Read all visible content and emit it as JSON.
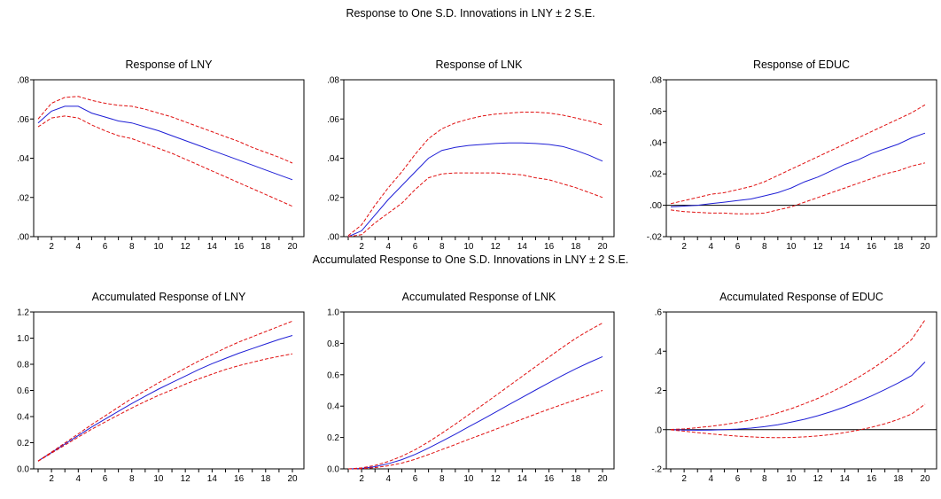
{
  "sections": [
    {
      "title": "Response to One S.D. Innovations in LNY ± 2 S.E.",
      "charts": [
        {
          "type": "line",
          "title": "Response of LNY",
          "x": [
            1,
            2,
            3,
            4,
            5,
            6,
            7,
            8,
            9,
            10,
            11,
            12,
            13,
            14,
            15,
            16,
            17,
            18,
            19,
            20
          ],
          "ylim": [
            0,
            0.08
          ],
          "yticks": [
            0,
            0.02,
            0.04,
            0.06,
            0.08
          ],
          "ytick_labels": [
            ".00",
            ".02",
            ".04",
            ".06",
            ".08"
          ],
          "zero_line": false,
          "series": [
            {
              "role": "response",
              "values": [
                0.058,
                0.064,
                0.0665,
                0.0665,
                0.063,
                0.061,
                0.059,
                0.058,
                0.056,
                0.054,
                0.0515,
                0.049,
                0.0465,
                0.044,
                0.0415,
                0.039,
                0.0365,
                0.034,
                0.0315,
                0.029
              ]
            },
            {
              "role": "upper",
              "values": [
                0.06,
                0.068,
                0.071,
                0.0715,
                0.0695,
                0.068,
                0.067,
                0.0665,
                0.065,
                0.063,
                0.061,
                0.0585,
                0.056,
                0.0535,
                0.051,
                0.0485,
                0.0455,
                0.043,
                0.0405,
                0.0375
              ]
            },
            {
              "role": "lower",
              "values": [
                0.056,
                0.0605,
                0.0615,
                0.0605,
                0.057,
                0.054,
                0.0515,
                0.05,
                0.0475,
                0.045,
                0.0425,
                0.0395,
                0.0365,
                0.0335,
                0.0305,
                0.0275,
                0.0245,
                0.0215,
                0.0185,
                0.0155
              ]
            }
          ]
        },
        {
          "type": "line",
          "title": "Response of LNK",
          "x": [
            1,
            2,
            3,
            4,
            5,
            6,
            7,
            8,
            9,
            10,
            11,
            12,
            13,
            14,
            15,
            16,
            17,
            18,
            19,
            20
          ],
          "ylim": [
            0,
            0.08
          ],
          "yticks": [
            0,
            0.02,
            0.04,
            0.06,
            0.08
          ],
          "ytick_labels": [
            ".00",
            ".02",
            ".04",
            ".06",
            ".08"
          ],
          "zero_line": false,
          "series": [
            {
              "role": "response",
              "values": [
                0.0,
                0.003,
                0.011,
                0.019,
                0.026,
                0.033,
                0.04,
                0.044,
                0.0455,
                0.0465,
                0.047,
                0.0475,
                0.0478,
                0.0478,
                0.0475,
                0.047,
                0.046,
                0.044,
                0.0415,
                0.0385
              ]
            },
            {
              "role": "upper",
              "values": [
                0.0005,
                0.006,
                0.016,
                0.025,
                0.033,
                0.042,
                0.05,
                0.055,
                0.058,
                0.06,
                0.0615,
                0.0625,
                0.063,
                0.0635,
                0.0635,
                0.063,
                0.062,
                0.0605,
                0.059,
                0.057
              ]
            },
            {
              "role": "lower",
              "values": [
                0.0,
                0.001,
                0.007,
                0.012,
                0.017,
                0.024,
                0.03,
                0.032,
                0.0325,
                0.0325,
                0.0325,
                0.0325,
                0.032,
                0.0315,
                0.03,
                0.029,
                0.027,
                0.025,
                0.0225,
                0.02
              ]
            }
          ]
        },
        {
          "type": "line",
          "title": "Response of EDUC",
          "x": [
            1,
            2,
            3,
            4,
            5,
            6,
            7,
            8,
            9,
            10,
            11,
            12,
            13,
            14,
            15,
            16,
            17,
            18,
            19,
            20
          ],
          "ylim": [
            -0.02,
            0.08
          ],
          "yticks": [
            -0.02,
            0,
            0.02,
            0.04,
            0.06,
            0.08
          ],
          "ytick_labels": [
            "-.02",
            ".00",
            ".02",
            ".04",
            ".06",
            ".08"
          ],
          "zero_line": true,
          "series": [
            {
              "role": "response",
              "values": [
                -0.001,
                -0.0005,
                0.0,
                0.001,
                0.002,
                0.003,
                0.004,
                0.006,
                0.008,
                0.011,
                0.015,
                0.018,
                0.022,
                0.026,
                0.029,
                0.033,
                0.036,
                0.039,
                0.043,
                0.046
              ]
            },
            {
              "role": "upper",
              "values": [
                0.001,
                0.003,
                0.005,
                0.007,
                0.008,
                0.01,
                0.012,
                0.015,
                0.019,
                0.023,
                0.027,
                0.031,
                0.035,
                0.039,
                0.043,
                0.047,
                0.051,
                0.055,
                0.059,
                0.064
              ]
            },
            {
              "role": "lower",
              "values": [
                -0.003,
                -0.004,
                -0.0045,
                -0.005,
                -0.005,
                -0.0055,
                -0.0055,
                -0.005,
                -0.003,
                -0.001,
                0.002,
                0.005,
                0.008,
                0.011,
                0.014,
                0.017,
                0.02,
                0.022,
                0.025,
                0.027
              ]
            }
          ]
        }
      ]
    },
    {
      "title": "Accumulated Response to One S.D. Innovations in LNY ± 2 S.E.",
      "charts": [
        {
          "type": "line",
          "title": "Accumulated Response of LNY",
          "x": [
            1,
            2,
            3,
            4,
            5,
            6,
            7,
            8,
            9,
            10,
            11,
            12,
            13,
            14,
            15,
            16,
            17,
            18,
            19,
            20
          ],
          "ylim": [
            0,
            1.2
          ],
          "yticks": [
            0,
            0.2,
            0.4,
            0.6,
            0.8,
            1.0,
            1.2
          ],
          "ytick_labels": [
            "0.0",
            "0.2",
            "0.4",
            "0.6",
            "0.8",
            "1.0",
            "1.2"
          ],
          "zero_line": false,
          "series": [
            {
              "role": "response",
              "values": [
                0.06,
                0.125,
                0.19,
                0.255,
                0.32,
                0.38,
                0.44,
                0.5,
                0.555,
                0.61,
                0.66,
                0.71,
                0.76,
                0.805,
                0.845,
                0.885,
                0.92,
                0.955,
                0.99,
                1.02
              ]
            },
            {
              "role": "upper",
              "values": [
                0.06,
                0.128,
                0.198,
                0.268,
                0.338,
                0.405,
                0.472,
                0.538,
                0.598,
                0.658,
                0.715,
                0.77,
                0.825,
                0.875,
                0.925,
                0.97,
                1.01,
                1.05,
                1.09,
                1.13
              ]
            },
            {
              "role": "lower",
              "values": [
                0.058,
                0.12,
                0.182,
                0.243,
                0.303,
                0.358,
                0.412,
                0.465,
                0.515,
                0.562,
                0.605,
                0.648,
                0.688,
                0.725,
                0.76,
                0.79,
                0.815,
                0.84,
                0.86,
                0.88
              ]
            }
          ]
        },
        {
          "type": "line",
          "title": "Accumulated Response of LNK",
          "x": [
            1,
            2,
            3,
            4,
            5,
            6,
            7,
            8,
            9,
            10,
            11,
            12,
            13,
            14,
            15,
            16,
            17,
            18,
            19,
            20
          ],
          "ylim": [
            0,
            1.0
          ],
          "yticks": [
            0,
            0.2,
            0.4,
            0.6,
            0.8,
            1.0
          ],
          "ytick_labels": [
            "0.0",
            "0.2",
            "0.4",
            "0.6",
            "0.8",
            "1.0"
          ],
          "zero_line": false,
          "series": [
            {
              "role": "response",
              "values": [
                0.0,
                0.003,
                0.014,
                0.033,
                0.059,
                0.092,
                0.132,
                0.176,
                0.221,
                0.268,
                0.314,
                0.361,
                0.409,
                0.456,
                0.503,
                0.549,
                0.595,
                0.638,
                0.678,
                0.715
              ]
            },
            {
              "role": "upper",
              "values": [
                0.0,
                0.006,
                0.022,
                0.047,
                0.08,
                0.122,
                0.172,
                0.227,
                0.285,
                0.345,
                0.405,
                0.466,
                0.528,
                0.59,
                0.652,
                0.713,
                0.774,
                0.832,
                0.883,
                0.93
              ]
            },
            {
              "role": "lower",
              "values": [
                0.0,
                0.001,
                0.008,
                0.02,
                0.037,
                0.061,
                0.091,
                0.123,
                0.155,
                0.188,
                0.22,
                0.252,
                0.285,
                0.317,
                0.349,
                0.381,
                0.411,
                0.44,
                0.47,
                0.5
              ]
            }
          ]
        },
        {
          "type": "line",
          "title": "Accumulated Response of EDUC",
          "x": [
            1,
            2,
            3,
            4,
            5,
            6,
            7,
            8,
            9,
            10,
            11,
            12,
            13,
            14,
            15,
            16,
            17,
            18,
            19,
            20
          ],
          "ylim": [
            -0.2,
            0.6
          ],
          "yticks": [
            -0.2,
            0,
            0.2,
            0.4,
            0.6
          ],
          "ytick_labels": [
            "-.2",
            ".0",
            ".2",
            ".4",
            ".6"
          ],
          "zero_line": true,
          "series": [
            {
              "role": "response",
              "values": [
                0.0,
                -0.002,
                -0.003,
                -0.002,
                0.0,
                0.003,
                0.008,
                0.015,
                0.025,
                0.038,
                0.053,
                0.071,
                0.092,
                0.116,
                0.143,
                0.172,
                0.204,
                0.238,
                0.276,
                0.345
              ]
            },
            {
              "role": "upper",
              "values": [
                0.001,
                0.004,
                0.01,
                0.017,
                0.026,
                0.037,
                0.05,
                0.066,
                0.085,
                0.107,
                0.132,
                0.16,
                0.192,
                0.227,
                0.266,
                0.308,
                0.354,
                0.404,
                0.46,
                0.56
              ]
            },
            {
              "role": "lower",
              "values": [
                -0.001,
                -0.008,
                -0.015,
                -0.022,
                -0.028,
                -0.033,
                -0.037,
                -0.04,
                -0.041,
                -0.04,
                -0.037,
                -0.032,
                -0.025,
                -0.015,
                -0.003,
                0.012,
                0.03,
                0.052,
                0.08,
                0.13
              ]
            }
          ]
        }
      ]
    }
  ],
  "x_tick_labels": [
    "2",
    "4",
    "6",
    "8",
    "10",
    "12",
    "14",
    "16",
    "18",
    "20"
  ],
  "colors": {
    "response": "#1f1fd6",
    "band": "#e01010",
    "axis": "#000000",
    "zero": "#000000"
  }
}
